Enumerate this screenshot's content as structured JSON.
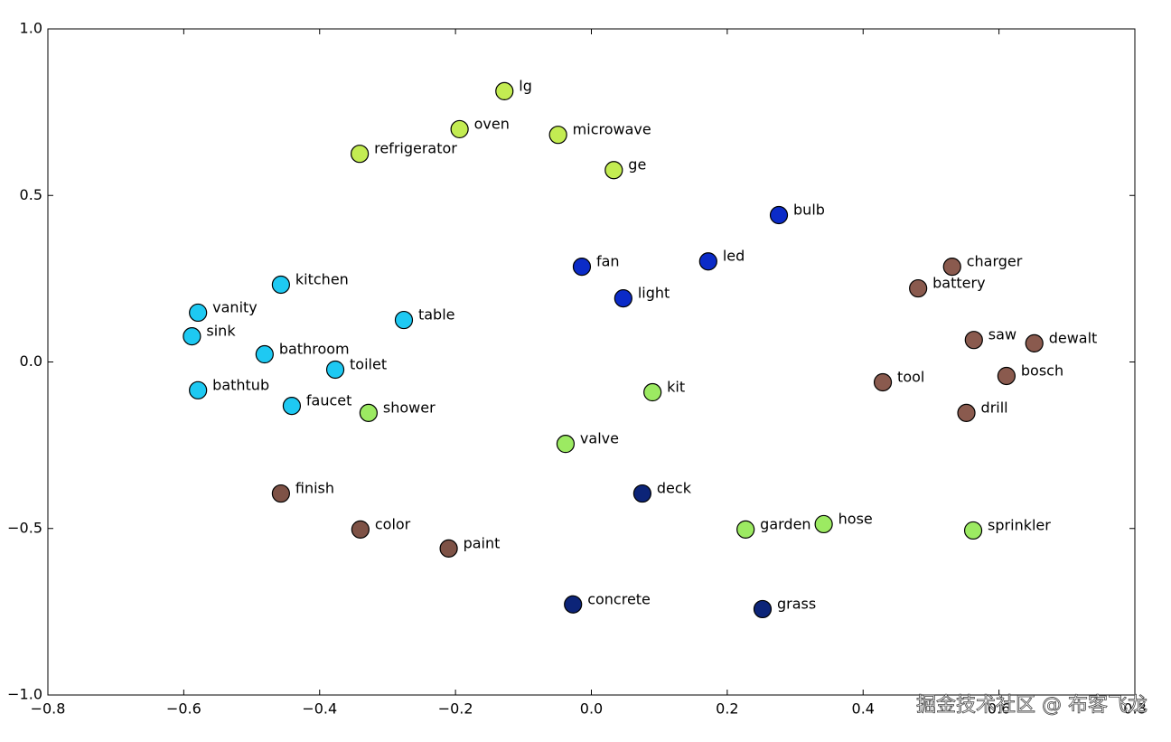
{
  "chart_data": {
    "type": "scatter",
    "xlim": [
      -0.8,
      0.8
    ],
    "ylim": [
      -1.0,
      1.0
    ],
    "xticks": [
      {
        "value": -0.8,
        "label": "−0.8"
      },
      {
        "value": -0.6,
        "label": "−0.6"
      },
      {
        "value": -0.4,
        "label": "−0.4"
      },
      {
        "value": -0.2,
        "label": "−0.2"
      },
      {
        "value": 0,
        "label": "0.0"
      },
      0.2,
      0.4,
      0.6,
      0.8
    ],
    "yticks": [
      {
        "value": -1.0,
        "label": "−1.0"
      },
      {
        "value": -0.5,
        "label": "−0.5"
      },
      {
        "value": 0,
        "label": "0.0"
      },
      0.5,
      {
        "value": 1.0,
        "label": "1.0"
      }
    ],
    "points": [
      {
        "label": "lg",
        "x": -0.128,
        "y": 0.813,
        "color": "#c3ec52"
      },
      {
        "label": "oven",
        "x": -0.194,
        "y": 0.699,
        "color": "#c3ec52"
      },
      {
        "label": "refrigerator",
        "x": -0.341,
        "y": 0.625,
        "color": "#c3ec52"
      },
      {
        "label": "microwave",
        "x": -0.049,
        "y": 0.682,
        "color": "#c3ec52"
      },
      {
        "label": "ge",
        "x": 0.033,
        "y": 0.576,
        "color": "#c3ec52"
      },
      {
        "label": "bulb",
        "x": 0.276,
        "y": 0.441,
        "color": "#0b2bc8"
      },
      {
        "label": "fan",
        "x": -0.014,
        "y": 0.286,
        "color": "#0b2bc8"
      },
      {
        "label": "led",
        "x": 0.172,
        "y": 0.302,
        "color": "#0b2bc8"
      },
      {
        "label": "light",
        "x": 0.047,
        "y": 0.191,
        "color": "#0b2bc8"
      },
      {
        "label": "charger",
        "x": 0.531,
        "y": 0.286,
        "color": "#8a5a4e"
      },
      {
        "label": "battery",
        "x": 0.481,
        "y": 0.221,
        "color": "#8a5a4e"
      },
      {
        "label": "saw",
        "x": 0.563,
        "y": 0.066,
        "color": "#8a5a4e"
      },
      {
        "label": "dewalt",
        "x": 0.652,
        "y": 0.056,
        "color": "#8a5a4e"
      },
      {
        "label": "bosch",
        "x": 0.611,
        "y": -0.042,
        "color": "#8a5a4e"
      },
      {
        "label": "tool",
        "x": 0.429,
        "y": -0.061,
        "color": "#8a5a4e"
      },
      {
        "label": "drill",
        "x": 0.552,
        "y": -0.153,
        "color": "#8a5a4e"
      },
      {
        "label": "kitchen",
        "x": -0.457,
        "y": 0.232,
        "color": "#1ec9f2"
      },
      {
        "label": "vanity",
        "x": -0.579,
        "y": 0.148,
        "color": "#1ec9f2"
      },
      {
        "label": "sink",
        "x": -0.588,
        "y": 0.077,
        "color": "#1ec9f2"
      },
      {
        "label": "bathroom",
        "x": -0.481,
        "y": 0.023,
        "color": "#1ec9f2"
      },
      {
        "label": "table",
        "x": -0.276,
        "y": 0.126,
        "color": "#1ec9f2"
      },
      {
        "label": "toilet",
        "x": -0.377,
        "y": -0.023,
        "color": "#1ec9f2"
      },
      {
        "label": "bathtub",
        "x": -0.579,
        "y": -0.085,
        "color": "#1ec9f2"
      },
      {
        "label": "faucet",
        "x": -0.441,
        "y": -0.132,
        "color": "#1ec9f2"
      },
      {
        "label": "shower",
        "x": -0.328,
        "y": -0.153,
        "color": "#9cea62"
      },
      {
        "label": "kit",
        "x": 0.09,
        "y": -0.091,
        "color": "#9cea62"
      },
      {
        "label": "valve",
        "x": -0.038,
        "y": -0.246,
        "color": "#9cea62"
      },
      {
        "label": "finish",
        "x": -0.457,
        "y": -0.395,
        "color": "#7e5246"
      },
      {
        "label": "color",
        "x": -0.34,
        "y": -0.503,
        "color": "#7e5246"
      },
      {
        "label": "paint",
        "x": -0.21,
        "y": -0.56,
        "color": "#7e5246"
      },
      {
        "label": "deck",
        "x": 0.075,
        "y": -0.395,
        "color": "#0c2478"
      },
      {
        "label": "garden",
        "x": 0.227,
        "y": -0.503,
        "color": "#9cea62"
      },
      {
        "label": "hose",
        "x": 0.342,
        "y": -0.487,
        "color": "#9cea62"
      },
      {
        "label": "sprinkler",
        "x": 0.562,
        "y": -0.506,
        "color": "#9cea62"
      },
      {
        "label": "concrete",
        "x": -0.027,
        "y": -0.728,
        "color": "#0c2478"
      },
      {
        "label": "grass",
        "x": 0.252,
        "y": -0.742,
        "color": "#0c2478"
      }
    ]
  },
  "watermark": "掘金技术社区 @ 布客飞龙"
}
